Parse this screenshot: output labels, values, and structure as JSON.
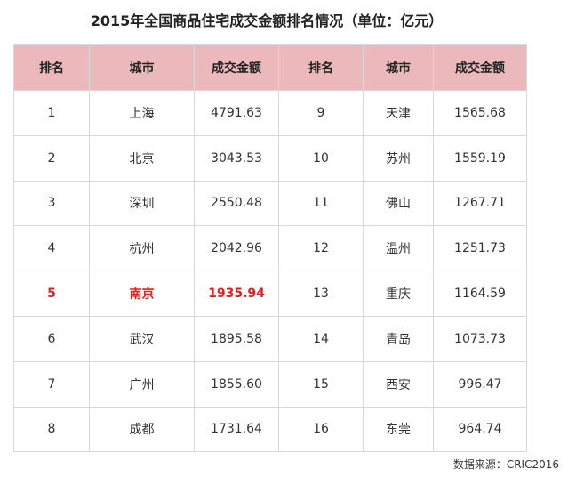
{
  "header": {
    "title": "2015年全国商品住宅成交金额排名情况（单位：亿元）"
  },
  "table": {
    "columns": [
      "排名",
      "城市",
      "成交金额",
      "排名",
      "城市",
      "成交金额"
    ],
    "rows": [
      [
        "1",
        "上海",
        "4791.63",
        "9",
        "天津",
        "1565.68"
      ],
      [
        "2",
        "北京",
        "3043.53",
        "10",
        "苏州",
        "1559.19"
      ],
      [
        "3",
        "深圳",
        "2550.48",
        "11",
        "佛山",
        "1267.71"
      ],
      [
        "4",
        "杭州",
        "2042.96",
        "12",
        "温州",
        "1251.73"
      ],
      [
        "5",
        "南京",
        "1935.94",
        "13",
        "重庆",
        "1164.59"
      ],
      [
        "6",
        "武汉",
        "1895.58",
        "14",
        "青岛",
        "1073.73"
      ],
      [
        "7",
        "广州",
        "1855.60",
        "15",
        "西安",
        "996.47"
      ],
      [
        "8",
        "成都",
        "1731.64",
        "16",
        "东莞",
        "964.74"
      ]
    ]
  },
  "footer": {
    "source": "数据来源：CRIC2016"
  }
}
